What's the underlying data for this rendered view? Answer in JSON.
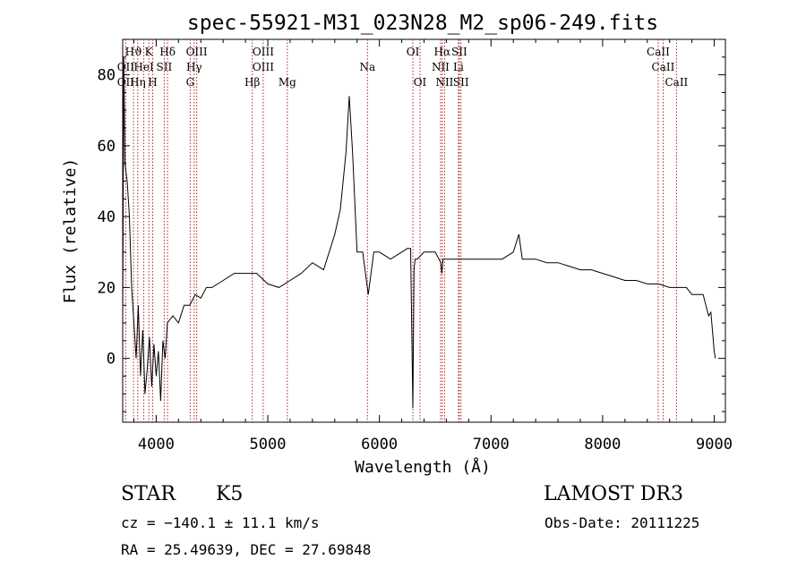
{
  "chart_data": {
    "type": "line",
    "title": "spec-55921-M31_023N28_M2_sp06-249.fits",
    "xlabel": "Wavelength (Å)",
    "ylabel": "Flux (relative)",
    "xlim": [
      3700,
      9100
    ],
    "ylim": [
      -18,
      90
    ],
    "xticks": [
      4000,
      5000,
      6000,
      7000,
      8000,
      9000
    ],
    "yticks": [
      0,
      20,
      40,
      60,
      80
    ],
    "series": [
      {
        "name": "spectrum",
        "x": [
          3700,
          3710,
          3720,
          3740,
          3760,
          3780,
          3800,
          3820,
          3840,
          3860,
          3880,
          3900,
          3920,
          3940,
          3960,
          3980,
          4000,
          4020,
          4040,
          4060,
          4080,
          4100,
          4150,
          4200,
          4250,
          4300,
          4350,
          4400,
          4450,
          4500,
          4600,
          4700,
          4800,
          4900,
          5000,
          5100,
          5200,
          5300,
          5400,
          5500,
          5550,
          5600,
          5650,
          5700,
          5730,
          5760,
          5800,
          5850,
          5900,
          5950,
          6000,
          6100,
          6200,
          6250,
          6280,
          6300,
          6310,
          6320,
          6340,
          6400,
          6500,
          6550,
          6560,
          6570,
          6600,
          6700,
          6800,
          6900,
          7000,
          7100,
          7200,
          7250,
          7280,
          7300,
          7400,
          7500,
          7600,
          7700,
          7800,
          7900,
          8000,
          8100,
          8200,
          8300,
          8400,
          8500,
          8600,
          8700,
          8750,
          8800,
          8850,
          8900,
          8950,
          8970,
          9000,
          9010
        ],
        "values": [
          10,
          85,
          55,
          50,
          40,
          20,
          10,
          0,
          15,
          -5,
          8,
          -10,
          -3,
          6,
          -8,
          4,
          -5,
          2,
          -12,
          5,
          0,
          10,
          12,
          10,
          15,
          15,
          18,
          17,
          20,
          20,
          22,
          24,
          24,
          24,
          21,
          20,
          22,
          24,
          27,
          25,
          30,
          35,
          42,
          58,
          74,
          58,
          30,
          30,
          18,
          30,
          30,
          28,
          30,
          31,
          31,
          -14,
          25,
          28,
          28,
          30,
          30,
          27,
          24,
          28,
          28,
          28,
          28,
          28,
          28,
          28,
          30,
          35,
          28,
          28,
          28,
          27,
          27,
          26,
          25,
          25,
          24,
          23,
          22,
          22,
          21,
          21,
          20,
          20,
          20,
          18,
          18,
          18,
          12,
          13,
          2,
          0
        ]
      }
    ],
    "lines_top": [
      {
        "label": "Hϑ",
        "x": 3797
      },
      {
        "label": "K",
        "x": 3934
      },
      {
        "label": "Hδ",
        "x": 4102
      },
      {
        "label": "OIII",
        "x": 4363
      },
      {
        "label": "OIII",
        "x": 4959
      },
      {
        "label": "OI",
        "x": 6300
      },
      {
        "label": "Hα",
        "x": 6563
      },
      {
        "label": "SII",
        "x": 6716
      },
      {
        "label": "CaII",
        "x": 8498
      }
    ],
    "lines_mid": [
      {
        "label": "OII",
        "x": 3727
      },
      {
        "label": "HeI",
        "x": 3889
      },
      {
        "label": "SII",
        "x": 4072
      },
      {
        "label": "Hγ",
        "x": 4340
      },
      {
        "label": "OIII",
        "x": 4959
      },
      {
        "label": "Na",
        "x": 5893
      },
      {
        "label": "NII",
        "x": 6548
      },
      {
        "label": "Li",
        "x": 6708
      },
      {
        "label": "CaII",
        "x": 8542
      }
    ],
    "lines_bot": [
      {
        "label": "OII",
        "x": 3727
      },
      {
        "label": "Hη",
        "x": 3835
      },
      {
        "label": "H",
        "x": 3969
      },
      {
        "label": "G",
        "x": 4305
      },
      {
        "label": "Hβ",
        "x": 4861
      },
      {
        "label": "Mg",
        "x": 5175
      },
      {
        "label": "OI",
        "x": 6364
      },
      {
        "label": "NII",
        "x": 6584
      },
      {
        "label": "SII",
        "x": 6731
      },
      {
        "label": "CaII",
        "x": 8662
      }
    ],
    "grid": false,
    "line_color": "#000000",
    "marker_color": "#b22222"
  },
  "info": {
    "class_label": "STAR",
    "subclass": "K5",
    "survey": "LAMOST DR3",
    "cz": "cz = −140.1 ± 11.1 km/s",
    "obs_date": "Obs-Date: 20111225",
    "coords": "RA =  25.49639, DEC =  27.69848"
  }
}
